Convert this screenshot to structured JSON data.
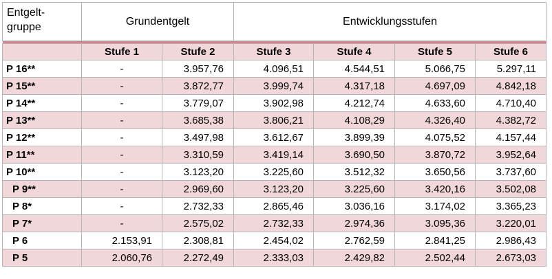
{
  "header": {
    "group_label": "Entgelt-",
    "group_label_line2": "gruppe",
    "base_pay_label": "Grundentgelt",
    "levels_label": "Entwicklungsstufen"
  },
  "columns": [
    "Stufe 1",
    "Stufe 2",
    "Stufe 3",
    "Stufe 4",
    "Stufe 5",
    "Stufe 6"
  ],
  "rows": [
    {
      "grade": "P 16**",
      "values": [
        "-",
        "3.957,76",
        "4.096,51",
        "4.544,51",
        "5.066,75",
        "5.297,11"
      ]
    },
    {
      "grade": "P 15**",
      "values": [
        "-",
        "3.872,77",
        "3.999,74",
        "4.317,18",
        "4.697,09",
        "4.842,18"
      ]
    },
    {
      "grade": "P 14**",
      "values": [
        "-",
        "3.779,07",
        "3.902,98",
        "4.212,74",
        "4.633,60",
        "4.710,40"
      ]
    },
    {
      "grade": "P 13**",
      "values": [
        "-",
        "3.685,38",
        "3.806,21",
        "4.108,29",
        "4.326,40",
        "4.382,72"
      ]
    },
    {
      "grade": "P 12**",
      "values": [
        "-",
        "3.497,98",
        "3.612,67",
        "3.899,39",
        "4.075,52",
        "4.157,44"
      ]
    },
    {
      "grade": "P 11**",
      "values": [
        "-",
        "3.310,59",
        "3.419,14",
        "3.690,50",
        "3.870,72",
        "3.952,64"
      ]
    },
    {
      "grade": "P 10**",
      "values": [
        "-",
        "3.123,20",
        "3.225,60",
        "3.512,32",
        "3.650,56",
        "3.737,60"
      ]
    },
    {
      "grade": "P 9**",
      "values": [
        "-",
        "2.969,60",
        "3.123,20",
        "3.225,60",
        "3.420,16",
        "3.502,08"
      ]
    },
    {
      "grade": "P 8*",
      "values": [
        "-",
        "2.732,33",
        "2.865,46",
        "3.036,16",
        "3.174,02",
        "3.365,23"
      ]
    },
    {
      "grade": "P 7*",
      "values": [
        "-",
        "2.575,02",
        "2.732,33",
        "2.974,36",
        "3.095,36",
        "3.220,01"
      ]
    },
    {
      "grade": "P 6",
      "values": [
        "2.153,91",
        "2.308,81",
        "2.454,02",
        "2.762,59",
        "2.841,25",
        "2.986,43"
      ]
    },
    {
      "grade": "P 5",
      "values": [
        "2.060,76",
        "2.272,49",
        "2.333,03",
        "2.429,82",
        "2.502,44",
        "2.673,03"
      ]
    }
  ]
}
